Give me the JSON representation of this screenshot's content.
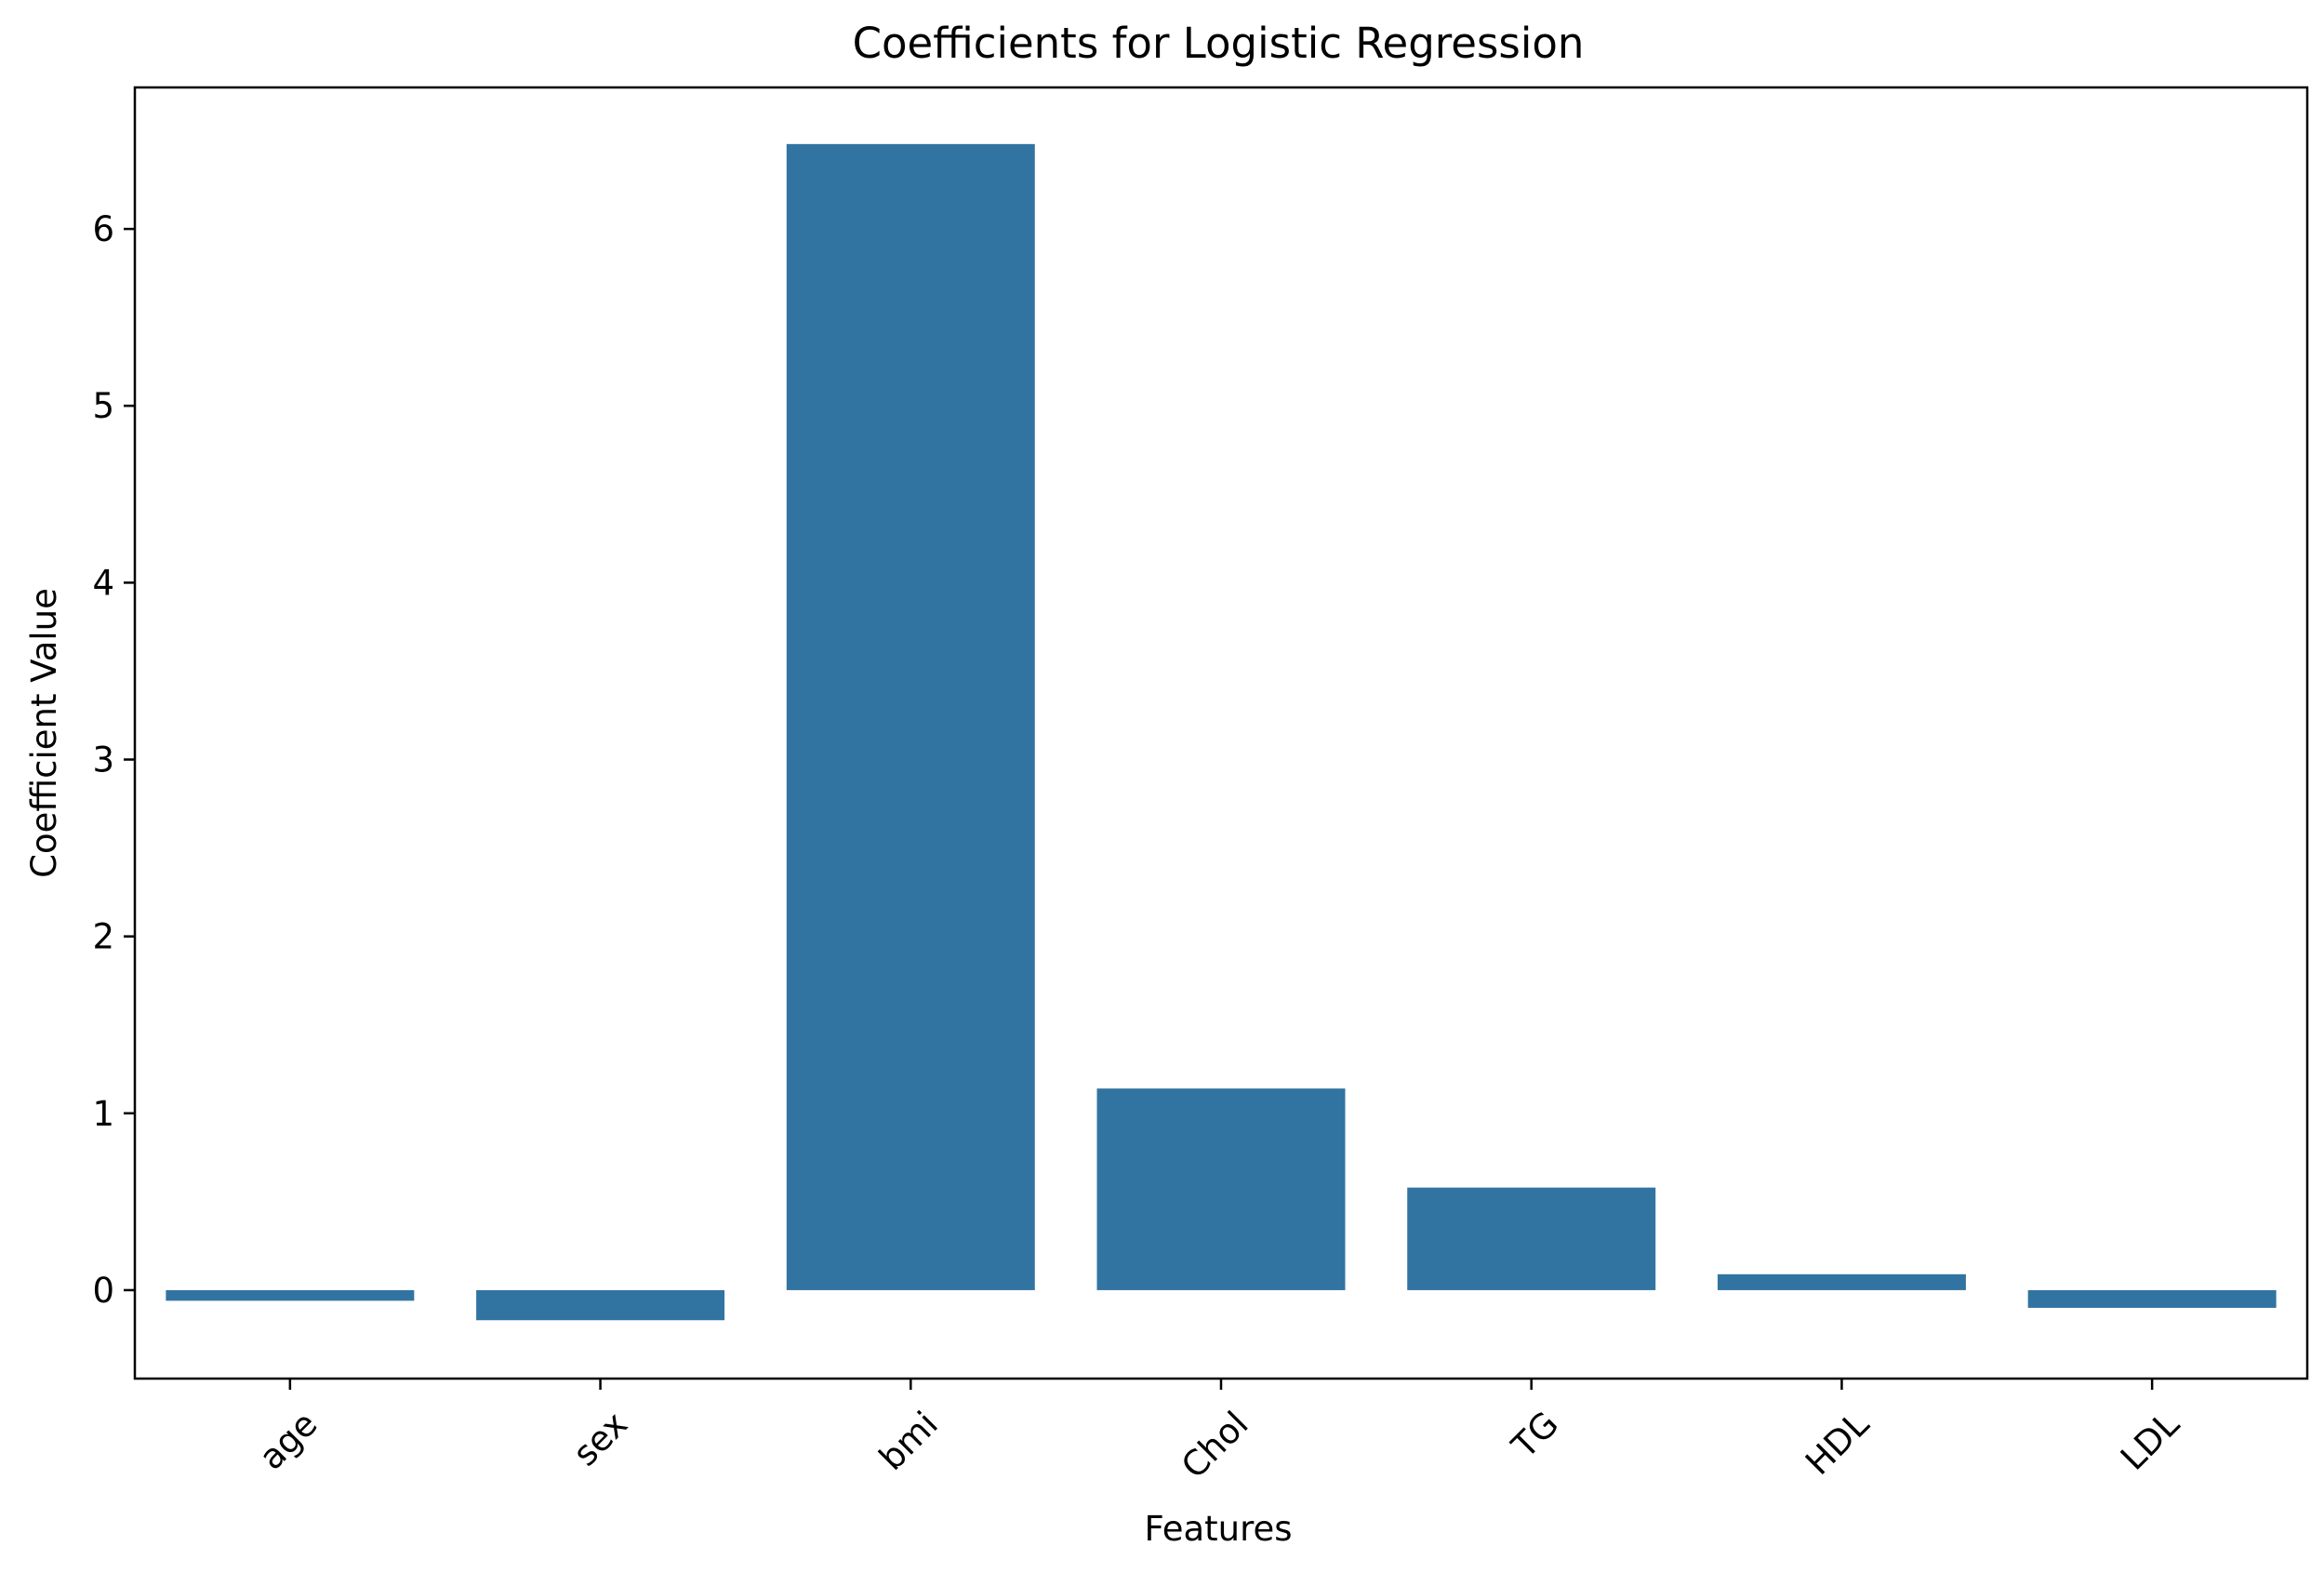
{
  "chart_data": {
    "type": "bar",
    "title": "Coefficients for Logistic Regression",
    "xlabel": "Features",
    "ylabel": "Coefficient Value",
    "categories": [
      "age",
      "sex",
      "bmi",
      "Chol",
      "TG",
      "HDL",
      "LDL"
    ],
    "values": [
      -0.06,
      -0.17,
      6.48,
      1.14,
      0.58,
      0.09,
      -0.1
    ],
    "ylim": [
      -0.5,
      6.8
    ],
    "yticks": [
      0,
      1,
      2,
      3,
      4,
      5,
      6
    ],
    "ytick_labels": [
      "0",
      "1",
      "2",
      "3",
      "4",
      "5",
      "6"
    ],
    "grid": false,
    "bar_color": "#3274a1"
  }
}
